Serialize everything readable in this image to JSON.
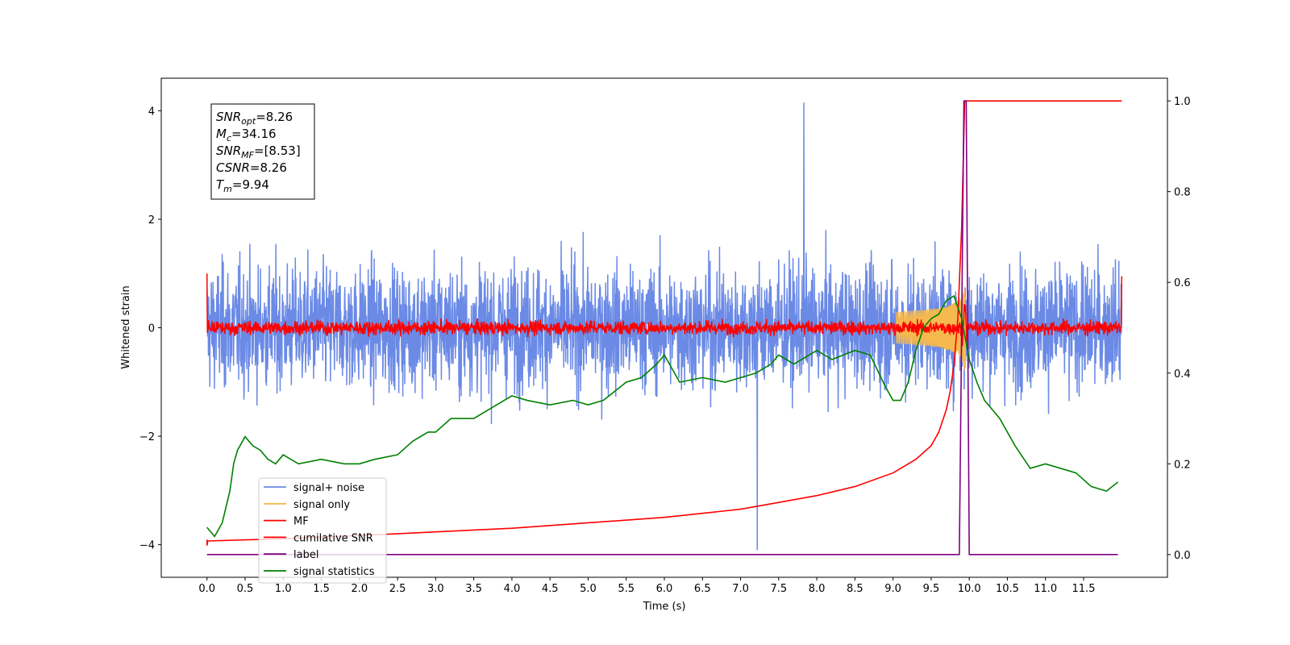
{
  "chart_data": {
    "type": "line",
    "xlabel": "Time (s)",
    "ylabel": "Whitened strain",
    "xlim": [
      -0.6,
      12.6
    ],
    "ylim": [
      -4.6,
      4.6
    ],
    "y2lim": [
      -0.05,
      1.05
    ],
    "x_ticks": [
      0.0,
      0.5,
      1.0,
      1.5,
      2.0,
      2.5,
      3.0,
      3.5,
      4.0,
      4.5,
      5.0,
      5.5,
      6.0,
      6.5,
      7.0,
      7.5,
      8.0,
      8.5,
      9.0,
      9.5,
      10.0,
      10.5,
      11.0,
      11.5
    ],
    "x_tick_labels": [
      "0.0",
      "0.5",
      "1.0",
      "1.5",
      "2.0",
      "2.5",
      "3.0",
      "3.5",
      "4.0",
      "4.5",
      "5.0",
      "5.5",
      "6.0",
      "6.5",
      "7.0",
      "7.5",
      "8.0",
      "8.5",
      "9.0",
      "9.5",
      "10.0",
      "10.5",
      "11.0",
      "11.5"
    ],
    "y_ticks": [
      -4,
      -2,
      0,
      2,
      4
    ],
    "y_tick_labels": [
      "−4",
      "−2",
      "0",
      "2",
      "4"
    ],
    "y2_ticks": [
      0.0,
      0.2,
      0.4,
      0.6,
      0.8,
      1.0
    ],
    "y2_tick_labels": [
      "0.0",
      "0.2",
      "0.4",
      "0.6",
      "0.8",
      "1.0"
    ],
    "grid": false,
    "legend_position": "lower-left",
    "annotation": {
      "lines": [
        {
          "var": "SNR",
          "sub": "opt",
          "value": "=8.26"
        },
        {
          "var": "M",
          "sub": "c",
          "value": "=34.16"
        },
        {
          "var": "SNR",
          "sub": "MF",
          "value": "=[8.53]"
        },
        {
          "var": "CSNR",
          "sub": "",
          "value": "=8.26"
        },
        {
          "var": "T",
          "sub": "m",
          "value": "=9.94"
        }
      ]
    },
    "colors": {
      "noise": "#6b8ae6",
      "signal": "#f5b94e",
      "mf": "#ff0000",
      "csnr": "#ff0000",
      "label": "#800080",
      "stats": "#008000"
    },
    "series": [
      {
        "name": "signal+ noise",
        "axis": "left",
        "kind": "noise",
        "t_start": 0.0,
        "t_end": 12.0,
        "spread": 1.1,
        "max": 4.15,
        "min": -4.1
      },
      {
        "name": "signal only",
        "axis": "left",
        "kind": "chirp",
        "t_merge": 9.94,
        "peak": 0.9
      },
      {
        "name": "MF",
        "axis": "left",
        "kind": "mf",
        "t_start": 0.0,
        "t_end": 12.0,
        "start_value": 1.0,
        "end_value": 0.95,
        "spread": 0.12
      },
      {
        "name": "cumilative SNR",
        "axis": "right",
        "x": [
          0.0,
          0.01,
          1.0,
          2.0,
          3.0,
          4.0,
          5.0,
          6.0,
          7.0,
          7.5,
          8.0,
          8.5,
          9.0,
          9.3,
          9.5,
          9.6,
          9.7,
          9.75,
          9.8,
          9.85,
          9.9,
          9.94,
          10.0,
          12.0
        ],
        "y": [
          0.02,
          0.03,
          0.035,
          0.042,
          0.05,
          0.058,
          0.07,
          0.082,
          0.1,
          0.115,
          0.13,
          0.15,
          0.18,
          0.21,
          0.24,
          0.27,
          0.32,
          0.36,
          0.42,
          0.52,
          0.72,
          1.0,
          1.0,
          1.0
        ]
      },
      {
        "name": "label",
        "axis": "right",
        "x": [
          0.0,
          9.87,
          9.93,
          9.96,
          10.0,
          11.95
        ],
        "y": [
          0.0,
          0.0,
          1.0,
          1.0,
          0.0,
          0.0
        ]
      },
      {
        "name": "signal statistics",
        "axis": "right",
        "x": [
          0.0,
          0.1,
          0.2,
          0.3,
          0.35,
          0.4,
          0.5,
          0.6,
          0.7,
          0.8,
          0.9,
          1.0,
          1.2,
          1.5,
          1.8,
          2.0,
          2.2,
          2.5,
          2.7,
          2.9,
          3.0,
          3.2,
          3.5,
          3.8,
          4.0,
          4.2,
          4.5,
          4.8,
          5.0,
          5.2,
          5.5,
          5.7,
          5.9,
          6.0,
          6.2,
          6.5,
          6.8,
          7.0,
          7.2,
          7.4,
          7.5,
          7.7,
          7.9,
          8.0,
          8.2,
          8.5,
          8.7,
          8.9,
          9.0,
          9.1,
          9.2,
          9.3,
          9.4,
          9.5,
          9.6,
          9.7,
          9.8,
          9.9,
          10.0,
          10.1,
          10.2,
          10.4,
          10.6,
          10.8,
          11.0,
          11.2,
          11.4,
          11.6,
          11.8,
          11.95
        ],
        "y": [
          0.06,
          0.04,
          0.07,
          0.14,
          0.2,
          0.23,
          0.26,
          0.24,
          0.23,
          0.21,
          0.2,
          0.22,
          0.2,
          0.21,
          0.2,
          0.2,
          0.21,
          0.22,
          0.25,
          0.27,
          0.27,
          0.3,
          0.3,
          0.33,
          0.35,
          0.34,
          0.33,
          0.34,
          0.33,
          0.34,
          0.38,
          0.39,
          0.42,
          0.44,
          0.38,
          0.39,
          0.38,
          0.39,
          0.4,
          0.42,
          0.44,
          0.42,
          0.44,
          0.45,
          0.43,
          0.45,
          0.44,
          0.37,
          0.34,
          0.34,
          0.38,
          0.45,
          0.5,
          0.52,
          0.53,
          0.56,
          0.57,
          0.52,
          0.43,
          0.38,
          0.34,
          0.3,
          0.24,
          0.19,
          0.2,
          0.19,
          0.18,
          0.15,
          0.14,
          0.16
        ]
      }
    ]
  }
}
